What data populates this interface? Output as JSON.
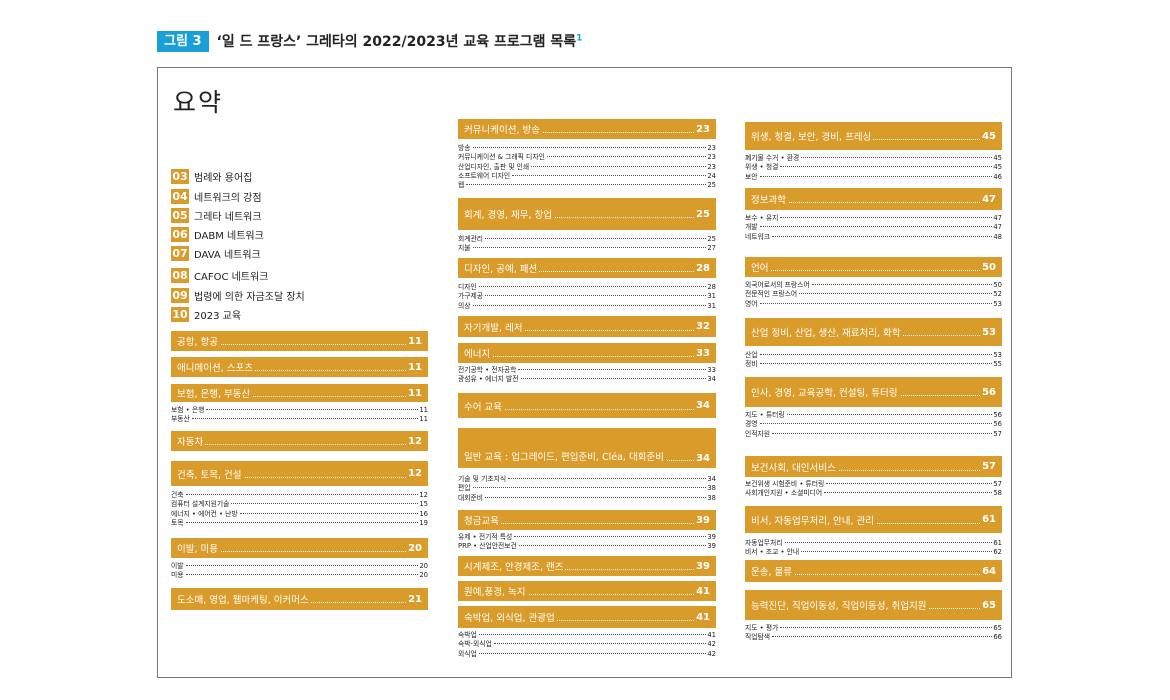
{
  "figure": {
    "tag": "그림 3",
    "title": "‘일 드 프랑스’ 그레타의 2022/2023년 교육 프로그램 목록",
    "footnote": "1"
  },
  "page_title": "요약",
  "toc": [
    {
      "num": "03",
      "label": "범례와 용어집"
    },
    {
      "num": "04",
      "label": "네트워크의 강점"
    },
    {
      "num": "05",
      "label": "그레타 네트워크"
    },
    {
      "num": "06",
      "label": "DABM 네트워크"
    },
    {
      "num": "07",
      "label": "DAVA 네트워크"
    },
    {
      "num": "08",
      "label": "CAFOC 네트워크"
    },
    {
      "num": "09",
      "label": "법령에 의한 자금조달 장치"
    },
    {
      "num": "10",
      "label": "2023 교육"
    }
  ],
  "columns": [
    [
      {
        "title": "공항, 항공",
        "page": "11",
        "items": []
      },
      {
        "title": "애니메이션, 스포츠",
        "page": "11",
        "items": []
      },
      {
        "title": "보험, 은행, 부동산",
        "page": "11",
        "items": [
          {
            "label": "보험 • 은행",
            "page": "11"
          },
          {
            "label": "부동산",
            "page": "11"
          }
        ]
      },
      {
        "title": "자동차",
        "page": "12",
        "items": []
      },
      {
        "title": "건축, 토목, 건설",
        "page": "12",
        "items": [
          {
            "label": "건축",
            "page": "12"
          },
          {
            "label": "컴퓨터 설계지원기술",
            "page": "15"
          },
          {
            "label": "에너지 • 에어컨 • 난방",
            "page": "16"
          },
          {
            "label": "토목",
            "page": "19"
          }
        ]
      },
      {
        "title": "이발, 미용",
        "page": "20",
        "items": [
          {
            "label": "이발",
            "page": "20"
          },
          {
            "label": "미용",
            "page": "20"
          }
        ]
      },
      {
        "title": "도소매, 영업, 웹마케팅, 이커머스",
        "page": "21",
        "items": []
      }
    ],
    [
      {
        "title": "커뮤니케이션, 방송",
        "page": "23",
        "items": [
          {
            "label": "방송",
            "page": "23"
          },
          {
            "label": "커뮤니케이션 & 그래픽 디자인",
            "page": "23"
          },
          {
            "label": "산업디자인, 출판 및 인쇄",
            "page": "23"
          },
          {
            "label": "소프트웨어 디자인",
            "page": "24"
          },
          {
            "label": "웹",
            "page": "25"
          }
        ]
      },
      {
        "title": "회계, 경영, 재무, 창업",
        "page": "25",
        "items": [
          {
            "label": "회계관리",
            "page": "25"
          },
          {
            "label": "지불",
            "page": "27"
          }
        ]
      },
      {
        "title": "디자인, 공예, 패션",
        "page": "28",
        "items": [
          {
            "label": "디자인",
            "page": "28"
          },
          {
            "label": "가구제공",
            "page": "31"
          },
          {
            "label": "의상",
            "page": "31"
          }
        ]
      },
      {
        "title": "자기개발, 레저",
        "page": "32",
        "items": []
      },
      {
        "title": "에너지",
        "page": "33",
        "items": [
          {
            "label": "전기공학 • 전자공학",
            "page": "33"
          },
          {
            "label": "광섬유 • 에너지 발전",
            "page": "34"
          }
        ]
      },
      {
        "title": "수어 교육",
        "page": "34",
        "items": []
      },
      {
        "title": "일반 교육 : 업그레이드, 편입준비, Cléa, 대회준비",
        "page": "34",
        "items": [
          {
            "label": "기술 및 기초지식",
            "page": "34"
          },
          {
            "label": "편입",
            "page": "38"
          },
          {
            "label": "대회준비",
            "page": "38"
          }
        ]
      },
      {
        "title": "청금교육",
        "page": "39",
        "items": [
          {
            "label": "유제 • 전기적 특성",
            "page": "39"
          },
          {
            "label": "PRP • 산업안전보건",
            "page": "39"
          }
        ]
      },
      {
        "title": "시계제조, 안경제조, 랜즈",
        "page": "39",
        "items": []
      },
      {
        "title": "원예,풍경, 녹지",
        "page": "41",
        "items": []
      },
      {
        "title": "숙박업, 외식업, 관광업",
        "page": "41",
        "items": [
          {
            "label": "숙박업",
            "page": "41"
          },
          {
            "label": "숙박-외식업",
            "page": "42"
          },
          {
            "label": "외식업",
            "page": "42"
          }
        ]
      }
    ],
    [
      {
        "title": "위생, 청결, 보안, 경비, 프레싱",
        "page": "45",
        "items": [
          {
            "label": "폐기물 수거 • 환경",
            "page": "45"
          },
          {
            "label": "위생 • 청결",
            "page": "45"
          },
          {
            "label": "보안",
            "page": "46"
          }
        ]
      },
      {
        "title": "정보과학",
        "page": "47",
        "items": [
          {
            "label": "보수 • 유지",
            "page": "47"
          },
          {
            "label": "개발",
            "page": "47"
          },
          {
            "label": "네트워크",
            "page": "48"
          }
        ]
      },
      {
        "title": "언어",
        "page": "50",
        "items": [
          {
            "label": "외국어로서의 프랑스어",
            "page": "50"
          },
          {
            "label": "전문적인 프랑스어",
            "page": "52"
          },
          {
            "label": "영어",
            "page": "53"
          }
        ]
      },
      {
        "title": "산업 정비, 산업, 생산, 재료처리, 화학",
        "page": "53",
        "items": [
          {
            "label": "산업",
            "page": "53"
          },
          {
            "label": "정비",
            "page": "55"
          }
        ]
      },
      {
        "title": "인사, 경영, 교육공학, 컨설팅, 튜터링",
        "page": "56",
        "items": [
          {
            "label": "지도 • 튜터링",
            "page": "56"
          },
          {
            "label": "경영",
            "page": "56"
          },
          {
            "label": "인적자원",
            "page": "57"
          }
        ]
      },
      {
        "title": "보건사회, 대인서비스",
        "page": "57",
        "items": [
          {
            "label": "보건위생 시험준비 • 튜터링",
            "page": "57"
          },
          {
            "label": "사회개인지원 • 소셜미디어",
            "page": "58"
          }
        ]
      },
      {
        "title": "비서, 자동업무처리, 안내, 관리",
        "page": "61",
        "items": [
          {
            "label": "자동업무처리",
            "page": "61"
          },
          {
            "label": "비서 • 조교 • 안내",
            "page": "62"
          }
        ]
      },
      {
        "title": "운송, 물류",
        "page": "64",
        "items": []
      },
      {
        "title": "능력진단, 직업이동성, 직업이동성, 취업지원",
        "page": "65",
        "items": [
          {
            "label": "지도 • 평가",
            "page": "65"
          },
          {
            "label": "직업탐색",
            "page": "66"
          }
        ]
      }
    ]
  ]
}
